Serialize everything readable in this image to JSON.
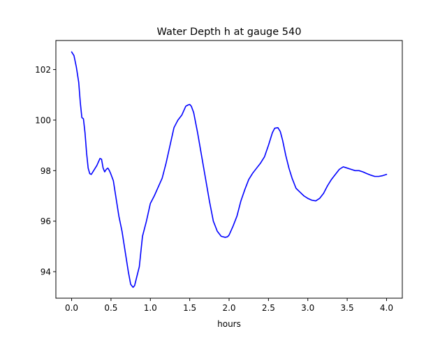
{
  "chart_data": {
    "type": "line",
    "title": "Water Depth h at gauge 540",
    "xlabel": "hours",
    "ylabel": "",
    "xlim": [
      -0.2,
      4.2
    ],
    "ylim": [
      92.95,
      103.15
    ],
    "x_ticks": [
      0.0,
      0.5,
      1.0,
      1.5,
      2.0,
      2.5,
      3.0,
      3.5,
      4.0
    ],
    "x_tick_labels": [
      "0.0",
      "0.5",
      "1.0",
      "1.5",
      "2.0",
      "2.5",
      "3.0",
      "3.5",
      "4.0"
    ],
    "y_ticks": [
      94,
      96,
      98,
      100,
      102
    ],
    "y_tick_labels": [
      "94",
      "96",
      "98",
      "100",
      "102"
    ],
    "grid": false,
    "legend": "none",
    "series": [
      {
        "color": "#0000ff",
        "x": [
          0.0,
          0.03,
          0.06,
          0.09,
          0.11,
          0.13,
          0.15,
          0.17,
          0.19,
          0.21,
          0.23,
          0.25,
          0.28,
          0.32,
          0.36,
          0.38,
          0.4,
          0.42,
          0.44,
          0.46,
          0.48,
          0.5,
          0.53,
          0.56,
          0.6,
          0.64,
          0.68,
          0.72,
          0.75,
          0.78,
          0.8,
          0.82,
          0.86,
          0.9,
          0.95,
          1.0,
          1.05,
          1.1,
          1.15,
          1.2,
          1.25,
          1.3,
          1.35,
          1.4,
          1.45,
          1.48,
          1.5,
          1.52,
          1.55,
          1.6,
          1.65,
          1.7,
          1.75,
          1.8,
          1.85,
          1.9,
          1.95,
          1.98,
          2.0,
          2.05,
          2.1,
          2.15,
          2.2,
          2.25,
          2.3,
          2.35,
          2.4,
          2.45,
          2.5,
          2.55,
          2.58,
          2.62,
          2.65,
          2.68,
          2.72,
          2.76,
          2.8,
          2.85,
          2.9,
          2.95,
          3.0,
          3.05,
          3.1,
          3.15,
          3.2,
          3.25,
          3.3,
          3.35,
          3.4,
          3.45,
          3.5,
          3.55,
          3.6,
          3.65,
          3.7,
          3.75,
          3.8,
          3.85,
          3.9,
          3.95,
          4.0
        ],
        "y": [
          102.7,
          102.55,
          102.1,
          101.5,
          100.7,
          100.1,
          100.05,
          99.5,
          98.7,
          98.1,
          97.88,
          97.85,
          98.0,
          98.2,
          98.48,
          98.45,
          98.1,
          97.95,
          98.05,
          98.1,
          98.0,
          97.85,
          97.6,
          97.0,
          96.2,
          95.6,
          94.8,
          94.0,
          93.5,
          93.38,
          93.45,
          93.7,
          94.2,
          95.4,
          96.0,
          96.7,
          97.0,
          97.35,
          97.7,
          98.3,
          99.0,
          99.7,
          100.0,
          100.2,
          100.55,
          100.6,
          100.62,
          100.55,
          100.3,
          99.5,
          98.6,
          97.7,
          96.8,
          96.0,
          95.6,
          95.4,
          95.36,
          95.38,
          95.45,
          95.8,
          96.2,
          96.8,
          97.25,
          97.65,
          97.9,
          98.1,
          98.3,
          98.55,
          99.0,
          99.5,
          99.68,
          99.7,
          99.55,
          99.2,
          98.6,
          98.1,
          97.7,
          97.3,
          97.15,
          97.0,
          96.9,
          96.83,
          96.8,
          96.9,
          97.1,
          97.4,
          97.65,
          97.85,
          98.05,
          98.15,
          98.1,
          98.05,
          98.0,
          98.0,
          97.95,
          97.88,
          97.82,
          97.77,
          97.77,
          97.8,
          97.85
        ]
      }
    ]
  }
}
